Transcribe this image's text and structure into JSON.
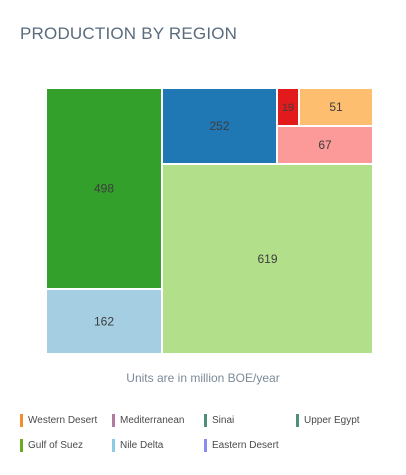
{
  "title": "PRODUCTION BY REGION",
  "note": "Units are in million BOE/year",
  "chart_data": {
    "type": "treemap",
    "title": "PRODUCTION BY REGION",
    "unit_note": "Units are in million BOE/year",
    "cells": [
      {
        "label": "498",
        "value": 498,
        "color": "#33a02c"
      },
      {
        "label": "162",
        "value": 162,
        "color": "#a6cee3"
      },
      {
        "label": "252",
        "value": 252,
        "color": "#1f78b4"
      },
      {
        "label": "19",
        "value": 19,
        "color": "#e31a1c"
      },
      {
        "label": "51",
        "value": 51,
        "color": "#fdbf6f"
      },
      {
        "label": "67",
        "value": 67,
        "color": "#fb9a99"
      },
      {
        "label": "619",
        "value": 619,
        "color": "#b2df8a"
      }
    ]
  },
  "legend": [
    {
      "name": "Western Desert",
      "color": "#f28e2b"
    },
    {
      "name": "Mediterranean",
      "color": "#b07aa1"
    },
    {
      "name": "Sinai",
      "color": "#4e8f7a"
    },
    {
      "name": "Upper Egypt",
      "color": "#4e8f7a"
    },
    {
      "name": "Gulf of Suez",
      "color": "#6aaa1e"
    },
    {
      "name": "Nile Delta",
      "color": "#8ecae6"
    },
    {
      "name": "Eastern Desert",
      "color": "#8c8cf0"
    }
  ]
}
